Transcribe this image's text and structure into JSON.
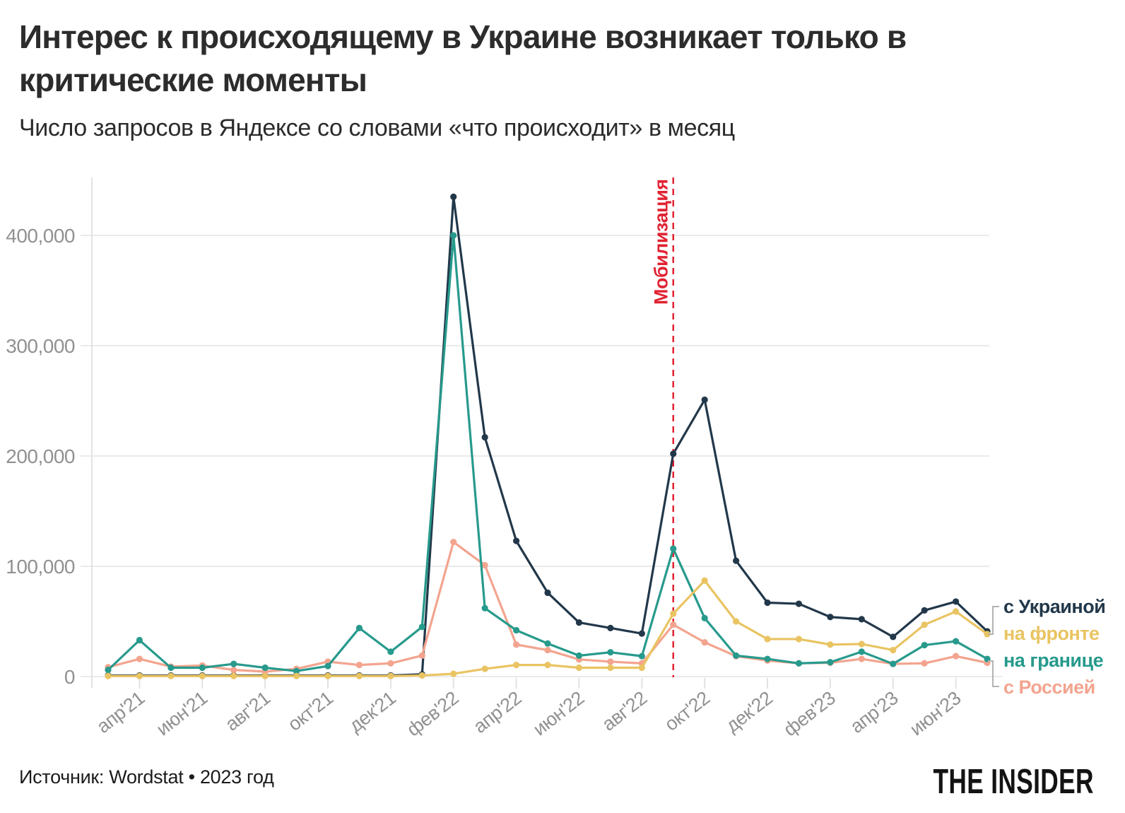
{
  "header": {
    "title_line1": "Интерес к происходящему в Украине возникает только в",
    "title_line2": "критические моменты",
    "subtitle": "Число запросов в Яндексе со словами «что происходит» в месяц"
  },
  "footer": {
    "source": "Источник: Wordstat • 2023 год",
    "logo": "THE INSIDER"
  },
  "palette": {
    "grid": "#eaeaea",
    "axis_line": "#e2e2e2",
    "tick_text": "#919191",
    "bracket": "#b3b3b3",
    "background": "#ffffff"
  },
  "chart_data": {
    "type": "line",
    "title": "Интерес к происходящему в Украине возникает только в критические моменты",
    "subtitle": "Число запросов в Яндексе со словами «что происходит» в месяц",
    "grid": "horizontal",
    "legend_position": "right-of-line-ends",
    "ylim": [
      0,
      450000
    ],
    "yticks": [
      {
        "value": 0,
        "label": "0"
      },
      {
        "value": 100000,
        "label": "100,000"
      },
      {
        "value": 200000,
        "label": "200,000"
      },
      {
        "value": 300000,
        "label": "300,000"
      },
      {
        "value": 400000,
        "label": "400,000"
      }
    ],
    "x": [
      "мар'21",
      "апр'21",
      "май'21",
      "июн'21",
      "июл'21",
      "авг'21",
      "сен'21",
      "окт'21",
      "ноя'21",
      "дек'21",
      "янв'22",
      "фев'22",
      "мар'22",
      "апр'22",
      "май'22",
      "июн'22",
      "июл'22",
      "авг'22",
      "сен'22",
      "окт'22",
      "ноя'22",
      "дек'22",
      "янв'23",
      "фев'23",
      "мар'23",
      "апр'23",
      "май'23",
      "июн'23",
      "июл'23"
    ],
    "x_tick_labels": [
      "апр'21",
      "июн'21",
      "авг'21",
      "окт'21",
      "дек'21",
      "фев'22",
      "апр'22",
      "июн'22",
      "авг'22",
      "окт'22",
      "дек'22",
      "фев'23",
      "апр'23",
      "июн'23"
    ],
    "series": [
      {
        "name": "с Украиной",
        "color": "#22384a",
        "values": [
          1000,
          1000,
          1000,
          1000,
          1000,
          1000,
          1000,
          1000,
          1000,
          1000,
          2000,
          435000,
          217000,
          123000,
          76000,
          49000,
          44000,
          39000,
          202000,
          251000,
          105000,
          67000,
          66000,
          54000,
          52000,
          36000,
          60000,
          68000,
          41000
        ]
      },
      {
        "name": "на фронте",
        "color": "#e9c462",
        "values": [
          500,
          500,
          500,
          500,
          500,
          500,
          500,
          500,
          500,
          500,
          1000,
          2500,
          7000,
          10500,
          10500,
          8000,
          8000,
          8000,
          57000,
          87000,
          50000,
          34000,
          34000,
          29000,
          29500,
          24000,
          47000,
          59000,
          38500
        ]
      },
      {
        "name": "на границе",
        "color": "#279a8c",
        "values": [
          6000,
          33000,
          8000,
          8000,
          11500,
          8000,
          5000,
          9500,
          44000,
          22500,
          45000,
          400000,
          62000,
          42000,
          30000,
          19000,
          22000,
          18500,
          116000,
          53000,
          19000,
          16000,
          12000,
          13000,
          22500,
          11500,
          28500,
          32000,
          16000
        ]
      },
      {
        "name": "с Россией",
        "color": "#f3a48f",
        "values": [
          8500,
          16000,
          9000,
          10000,
          6000,
          4500,
          7000,
          13500,
          10500,
          12000,
          19000,
          122000,
          101000,
          29000,
          24000,
          15500,
          13500,
          12000,
          47000,
          31000,
          18500,
          14500,
          12000,
          12500,
          16000,
          11500,
          12000,
          18500,
          12500
        ]
      }
    ],
    "annotation": {
      "label": "Мобилизация",
      "x": "сен'22",
      "color": "#e12231",
      "style": "dashed-vertical-line"
    }
  }
}
